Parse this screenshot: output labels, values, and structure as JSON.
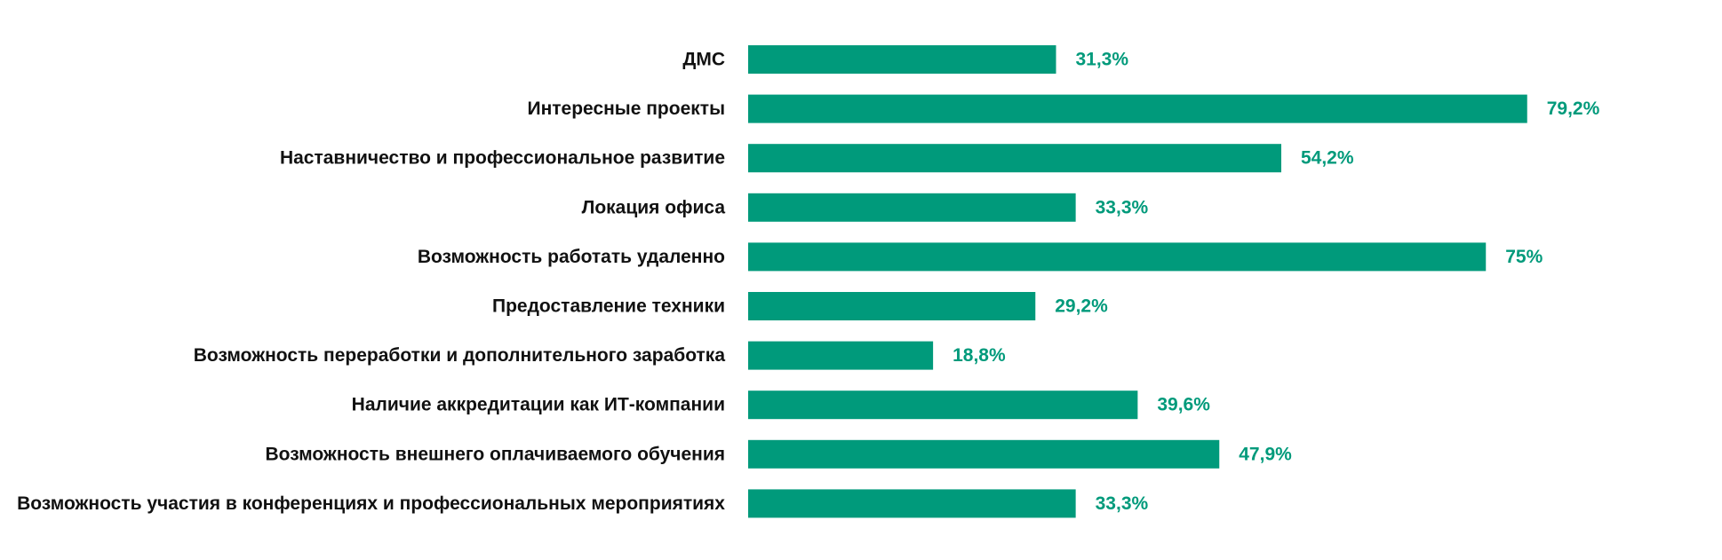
{
  "chart_data": {
    "type": "bar",
    "orientation": "horizontal",
    "title": "",
    "xlabel": "",
    "ylabel": "",
    "grid": false,
    "categories": [
      "ДМС",
      "Интересные проекты",
      "Наставничество и профессиональное развитие",
      "Локация офиса",
      "Возможность работать удаленно",
      "Предоставление техники",
      "Возможность переработки и дополнительного заработка",
      "Наличие аккредитации как ИТ-компании",
      "Возможность внешнего оплачиваемого обучения",
      "Возможность участия в конференциях и профессиональных мероприятиях"
    ],
    "values": [
      31.3,
      79.2,
      54.2,
      33.3,
      75,
      29.2,
      18.8,
      39.6,
      47.9,
      33.3
    ],
    "value_labels": [
      "31,3%",
      "79,2%",
      "54,2%",
      "33,3%",
      "75%",
      "29,2%",
      "18,8%",
      "39,6%",
      "47,9%",
      "33,3%"
    ],
    "xlim": [
      0,
      100
    ],
    "colors": {
      "bar": "#009a7b",
      "value_label": "#009a7b",
      "category_label": "#111111"
    }
  }
}
